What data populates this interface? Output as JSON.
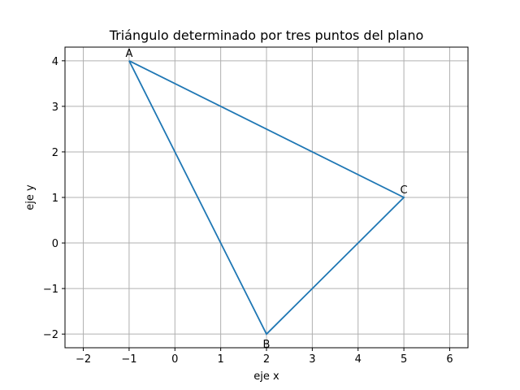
{
  "chart_data": {
    "type": "line",
    "title": "Triángulo determinado por tres puntos del plano",
    "xlabel": "eje x",
    "ylabel": "eje y",
    "xlim": [
      -2.4,
      6.4
    ],
    "ylim": [
      -2.3,
      4.3
    ],
    "xticks": [
      -2,
      -1,
      0,
      1,
      2,
      3,
      4,
      5,
      6
    ],
    "yticks": [
      -2,
      -1,
      0,
      1,
      2,
      3,
      4
    ],
    "xtick_labels": [
      "−2",
      "−1",
      "0",
      "1",
      "2",
      "3",
      "4",
      "5",
      "6"
    ],
    "ytick_labels": [
      "−2",
      "−1",
      "0",
      "1",
      "2",
      "3",
      "4"
    ],
    "grid": true,
    "series": [
      {
        "color": "#1f77b4",
        "x": [
          -1,
          2,
          5,
          -1
        ],
        "y": [
          4,
          -2,
          1,
          4
        ]
      }
    ],
    "annotations": [
      {
        "text": "A",
        "x": -1,
        "y": 4,
        "position": "above"
      },
      {
        "text": "B",
        "x": 2,
        "y": -2,
        "position": "below"
      },
      {
        "text": "C",
        "x": 5,
        "y": 1,
        "position": "above"
      }
    ]
  }
}
